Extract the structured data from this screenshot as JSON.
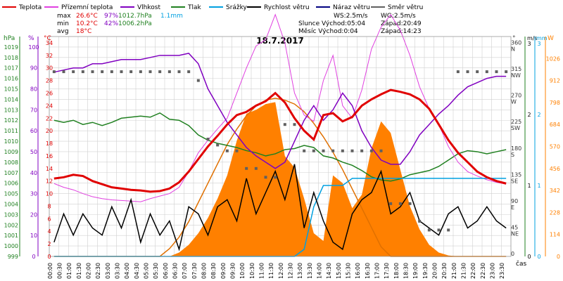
{
  "legend": [
    {
      "label": "Teplota",
      "color": "#e00000"
    },
    {
      "label": "Přízemní teplota",
      "color": "#e040e0"
    },
    {
      "label": "Vlhkost",
      "color": "#8000c0"
    },
    {
      "label": "Tlak",
      "color": "#208020"
    },
    {
      "label": "Srážky",
      "color": "#00a0e0"
    },
    {
      "label": "Rychlost větru",
      "color": "#000000"
    },
    {
      "label": "Náraz větru",
      "color": "#000080"
    },
    {
      "label": "Směr větru",
      "color": "#606060"
    }
  ],
  "stats": {
    "max_label": "max",
    "max_temp": "26.6°C",
    "max_hum": "97%",
    "max_press": "1012.7hPa",
    "max_rain": "1.1mm",
    "min_label": "min",
    "min_temp": "10.2°C",
    "min_hum": "42%",
    "min_press": "1006.2hPa",
    "avg_label": "avg",
    "avg_temp": "18°C"
  },
  "astro": {
    "ws": "WS:2.5m/s",
    "wg": "WG:2.5m/s",
    "sun": "Slunce Východ:05:04",
    "sun_set": "Západ:20:49",
    "moon": "Měsíc  Východ:0:04",
    "moon_set": "Západ:14:23"
  },
  "title": "18.7.2017",
  "xlabel": "čas",
  "axis_titles": {
    "hpa": "hPa",
    "pct": "%",
    "temp": "°C",
    "dir": "°",
    "ms": "m/s",
    "mm": "mm",
    "w": "W"
  },
  "colors": {
    "temp": "#e00000",
    "ground": "#e040e0",
    "hum": "#8000c0",
    "press": "#208020",
    "rain": "#00a0e0",
    "wind": "#000000",
    "gust": "#000080",
    "dir": "#606060",
    "solar": "#ff8000",
    "solarline": "#e07000",
    "grid": "#d0d0d0"
  },
  "chart_data": {
    "type": "line",
    "time": [
      "00:00",
      "00:30",
      "01:00",
      "01:30",
      "02:00",
      "02:30",
      "03:00",
      "03:30",
      "04:00",
      "04:30",
      "05:00",
      "05:30",
      "06:00",
      "06:30",
      "07:00",
      "07:30",
      "08:00",
      "08:30",
      "09:00",
      "09:30",
      "10:00",
      "10:30",
      "11:00",
      "11:30",
      "12:00",
      "12:30",
      "13:00",
      "13:30",
      "14:00",
      "14:30",
      "15:00",
      "15:30",
      "16:00",
      "16:30",
      "17:00",
      "17:30",
      "18:00",
      "18:30",
      "19:00",
      "19:30",
      "20:00",
      "20:30",
      "21:00",
      "21:30",
      "22:00",
      "22:30",
      "23:00",
      "23:30"
    ],
    "axes": {
      "pressure": {
        "label": "hPa",
        "range": [
          999,
          1020
        ],
        "ticks": [
          999,
          1000,
          1001,
          1002,
          1003,
          1004,
          1005,
          1006,
          1007,
          1008,
          1009,
          1010,
          1011,
          1012,
          1013,
          1014,
          1015,
          1016,
          1017,
          1018,
          1019
        ]
      },
      "humidity": {
        "label": "%",
        "range": [
          0,
          105
        ],
        "ticks": [
          0,
          10,
          20,
          30,
          40,
          50,
          60,
          70,
          80,
          90,
          100
        ]
      },
      "temperature": {
        "label": "°C",
        "range": [
          0,
          35
        ],
        "ticks": [
          0,
          2,
          4,
          6,
          8,
          10,
          12,
          14,
          16,
          18,
          20,
          22,
          24,
          26,
          28,
          30,
          32,
          34
        ]
      },
      "direction": {
        "label": "°",
        "ticks": [
          {
            "v": 0,
            "t": "0"
          },
          {
            "v": 45,
            "t": "45\nNE"
          },
          {
            "v": 90,
            "t": "90\nE"
          },
          {
            "v": 135,
            "t": "135\nSE"
          },
          {
            "v": 180,
            "t": "180\nS"
          },
          {
            "v": 225,
            "t": "225\nSW"
          },
          {
            "v": 270,
            "t": "270\nW"
          },
          {
            "v": 315,
            "t": "315\nNW"
          },
          {
            "v": 360,
            "t": "360\nN"
          }
        ],
        "range": [
          0,
          375
        ]
      },
      "wind": {
        "label": "m/s",
        "range": [
          0,
          3.1
        ],
        "ticks": [
          0,
          1,
          2,
          3
        ]
      },
      "rain": {
        "label": "mm",
        "range": [
          0,
          3.1
        ],
        "ticks": [
          0,
          1,
          2,
          3
        ]
      },
      "solar": {
        "label": "W",
        "range": [
          0,
          1140
        ],
        "ticks": [
          0,
          114,
          228,
          342,
          456,
          570,
          684,
          798,
          912,
          1026
        ]
      }
    },
    "series": [
      {
        "name": "Teplota",
        "key": "temp",
        "axis": "temperature",
        "values": [
          12.4,
          12.6,
          13.0,
          12.8,
          12.0,
          11.5,
          11.0,
          10.8,
          10.6,
          10.5,
          10.3,
          10.4,
          10.8,
          11.8,
          13.5,
          15.5,
          17.5,
          19.2,
          21.0,
          22.5,
          23.0,
          24.0,
          24.7,
          26.0,
          24.5,
          22.0,
          20.0,
          18.6,
          22.5,
          22.8,
          21.5,
          22.2,
          24.0,
          25.0,
          25.8,
          26.5,
          26.2,
          25.8,
          25.0,
          23.5,
          21.0,
          18.5,
          16.5,
          15.0,
          13.5,
          12.6,
          12.0,
          11.6
        ]
      },
      {
        "name": "Přízemní teplota",
        "key": "ground",
        "axis": "temperature",
        "values": [
          11.6,
          11.0,
          10.6,
          10.0,
          9.5,
          9.2,
          9.0,
          8.9,
          8.8,
          8.7,
          9.2,
          9.6,
          10.0,
          11.0,
          13.5,
          16.5,
          18.5,
          20.3,
          22.0,
          26.0,
          30.0,
          33.5,
          34.5,
          38.5,
          34.0,
          26.0,
          22.5,
          21.5,
          28.0,
          32.0,
          24.0,
          22.0,
          26.5,
          33.0,
          36.5,
          38.5,
          36.0,
          32.0,
          27.0,
          23.5,
          21.0,
          17.5,
          15.0,
          13.5,
          12.8,
          12.2,
          11.8,
          11.5
        ]
      },
      {
        "name": "Vlhkost",
        "key": "hum",
        "axis": "humidity",
        "values": [
          88,
          89,
          90,
          90,
          92,
          92,
          93,
          94,
          94,
          94,
          95,
          96,
          96,
          96,
          97,
          92,
          80,
          72,
          64,
          58,
          52,
          48,
          45,
          42,
          45,
          55,
          65,
          72,
          65,
          70,
          78,
          72,
          60,
          52,
          46,
          44,
          44,
          50,
          58,
          63,
          68,
          72,
          77,
          81,
          83,
          85,
          86,
          86
        ]
      },
      {
        "name": "Tlak",
        "key": "press",
        "axis": "pressure",
        "values": [
          1012.0,
          1011.8,
          1012.0,
          1011.6,
          1011.8,
          1011.5,
          1011.8,
          1012.2,
          1012.3,
          1012.4,
          1012.3,
          1012.7,
          1012.1,
          1012.0,
          1011.5,
          1010.6,
          1010.1,
          1009.8,
          1009.6,
          1009.4,
          1009.1,
          1008.9,
          1008.6,
          1008.8,
          1009.2,
          1009.3,
          1009.6,
          1009.4,
          1008.6,
          1008.4,
          1008.0,
          1007.7,
          1007.2,
          1006.6,
          1006.3,
          1006.2,
          1006.4,
          1006.8,
          1007.0,
          1007.2,
          1007.6,
          1008.2,
          1008.8,
          1009.1,
          1009.0,
          1008.8,
          1009.0,
          1009.2
        ]
      },
      {
        "name": "Srážky",
        "key": "rain",
        "axis": "rain",
        "values": [
          0,
          0,
          0,
          0,
          0,
          0,
          0,
          0,
          0,
          0,
          0,
          0,
          0,
          0,
          0,
          0,
          0,
          0,
          0,
          0,
          0,
          0,
          0,
          0,
          0,
          0,
          0.1,
          0.7,
          1.0,
          1.0,
          1.0,
          1.1,
          1.1,
          1.1,
          1.1,
          1.1,
          1.1,
          1.1,
          1.1,
          1.1,
          1.1,
          1.1,
          1.1,
          1.1,
          1.1,
          1.1,
          1.1,
          1.1
        ]
      },
      {
        "name": "Rychlost větru",
        "key": "wind",
        "axis": "wind",
        "values": [
          0.2,
          0.6,
          0.3,
          0.6,
          0.4,
          0.3,
          0.7,
          0.4,
          0.8,
          0.2,
          0.6,
          0.3,
          0.5,
          0.1,
          0.7,
          0.6,
          0.3,
          0.7,
          0.8,
          0.5,
          1.1,
          0.6,
          0.9,
          1.2,
          0.8,
          1.3,
          0.4,
          0.9,
          0.5,
          0.2,
          0.1,
          0.6,
          0.8,
          0.9,
          1.2,
          0.6,
          0.7,
          0.9,
          0.5,
          0.4,
          0.3,
          0.6,
          0.7,
          0.4,
          0.5,
          0.7,
          0.5,
          0.4
        ]
      },
      {
        "name": "Směr větru",
        "key": "dir",
        "axis": "direction",
        "values": [
          315,
          315,
          315,
          315,
          315,
          315,
          315,
          315,
          315,
          315,
          315,
          315,
          315,
          315,
          315,
          300,
          200,
          190,
          180,
          180,
          150,
          150,
          135,
          135,
          225,
          225,
          180,
          180,
          180,
          180,
          180,
          180,
          180,
          180,
          180,
          90,
          90,
          90,
          60,
          45,
          45,
          45,
          315,
          315,
          315,
          315,
          315,
          315
        ]
      },
      {
        "name": "Solar",
        "key": "solar",
        "axis": "solar",
        "values": [
          0,
          0,
          0,
          0,
          0,
          0,
          0,
          0,
          0,
          0,
          0,
          0,
          0,
          20,
          60,
          120,
          200,
          300,
          420,
          600,
          740,
          760,
          790,
          800,
          520,
          460,
          300,
          120,
          80,
          420,
          380,
          250,
          320,
          560,
          700,
          640,
          450,
          260,
          140,
          60,
          20,
          5,
          0,
          0,
          0,
          0,
          0,
          0
        ]
      },
      {
        "name": "Solar max",
        "key": "solarmax",
        "axis": "solar",
        "values": [
          0,
          0,
          0,
          0,
          0,
          0,
          0,
          0,
          0,
          0,
          0,
          0,
          40,
          100,
          180,
          280,
          380,
          480,
          580,
          660,
          730,
          780,
          810,
          820,
          810,
          790,
          750,
          690,
          620,
          540,
          450,
          350,
          250,
          150,
          50,
          0,
          0,
          0,
          0,
          0,
          0,
          0,
          0,
          0,
          0,
          0,
          0,
          0
        ]
      }
    ]
  }
}
